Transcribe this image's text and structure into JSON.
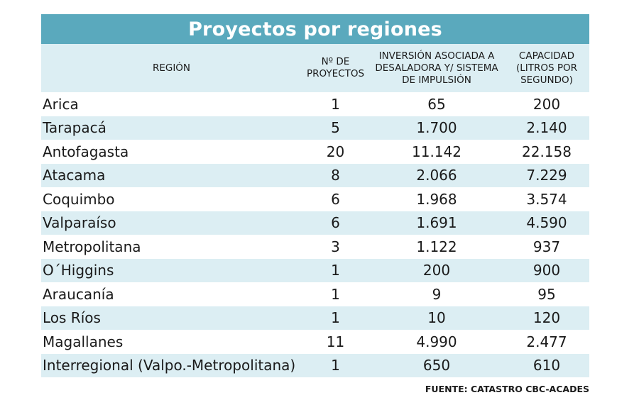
{
  "title": "Proyectos por regiones",
  "headers": {
    "region": "REGIÓN",
    "projects": "Nº DE PROYECTOS",
    "investment": "INVERSIÓN ASOCIADA A DESALADORA Y/ SISTEMA DE IMPULSIÓN",
    "capacity": "CAPACIDAD (LITROS POR SEGUNDO)"
  },
  "rows": [
    {
      "region": "Arica",
      "projects": "1",
      "investment": "65",
      "capacity": "200"
    },
    {
      "region": "Tarapacá",
      "projects": "5",
      "investment": "1.700",
      "capacity": "2.140"
    },
    {
      "region": "Antofagasta",
      "projects": "20",
      "investment": "11.142",
      "capacity": "22.158"
    },
    {
      "region": "Atacama",
      "projects": "8",
      "investment": "2.066",
      "capacity": "7.229"
    },
    {
      "region": "Coquimbo",
      "projects": "6",
      "investment": "1.968",
      "capacity": "3.574"
    },
    {
      "region": "Valparaíso",
      "projects": "6",
      "investment": "1.691",
      "capacity": "4.590"
    },
    {
      "region": "Metropolitana",
      "projects": "3",
      "investment": "1.122",
      "capacity": "937"
    },
    {
      "region": "O´Higgins",
      "projects": "1",
      "investment": "200",
      "capacity": "900"
    },
    {
      "region": "Araucanía",
      "projects": "1",
      "investment": "9",
      "capacity": "95"
    },
    {
      "region": "Los Ríos",
      "projects": "1",
      "investment": "10",
      "capacity": "120"
    },
    {
      "region": "Magallanes",
      "projects": "11",
      "investment": "4.990",
      "capacity": "2.477"
    },
    {
      "region": "Interregional (Valpo.-Metropolitana)",
      "projects": "1",
      "investment": "650",
      "capacity": "610"
    }
  ],
  "source": "FUENTE: CATASTRO CBC-ACADES",
  "colors": {
    "header_bar": "#5aa9bd",
    "stripe": "#dceef3"
  }
}
